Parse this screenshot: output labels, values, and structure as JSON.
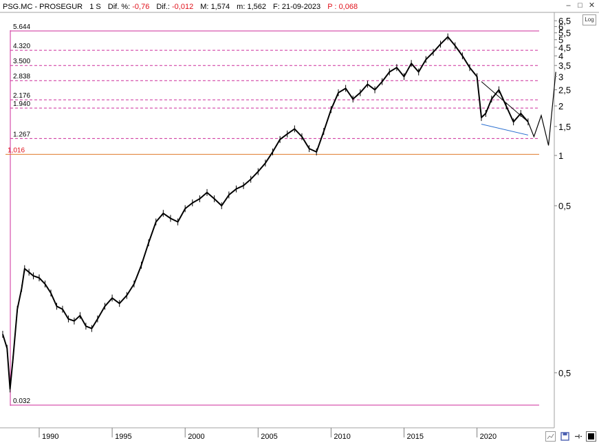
{
  "header": {
    "symbol": "PSG.MC - PROSEGUR",
    "timeframe": "1 S",
    "dif_pct_label": "Dif. %:",
    "dif_pct_value": "-0,76",
    "dif_label": "Dif.:",
    "dif_value": "-0,012",
    "max_label": "M:",
    "max_value": "1,574",
    "min_label": "m:",
    "min_value": "1,562",
    "date_label": "F:",
    "date_value": "21-09-2023",
    "p_label": "P :",
    "p_value": "0,068"
  },
  "toolbar": {
    "log_label": "Log"
  },
  "colors": {
    "background": "#ffffff",
    "price_line": "#000000",
    "level_lines": "#cc2a9a",
    "orange_level": "#e07a2a",
    "negative_value": "#e0101a",
    "support_line": "#2a6fd0"
  },
  "icons": [
    "minimize-icon",
    "maximize-icon",
    "close-icon",
    "zoom-icon",
    "save-icon",
    "pin-icon",
    "color-swatch-icon"
  ],
  "chart_data": {
    "type": "line",
    "title": "PSG.MC - PROSEGUR",
    "scale": "log",
    "grid": false,
    "y_ticks": [
      "6,5",
      "6",
      "5,5",
      "5",
      "4,5",
      "4",
      "3,5",
      "3",
      "2,5",
      "2",
      "1,5",
      "1",
      "0,5",
      "0,5"
    ],
    "x_ticks": [
      "1990",
      "1995",
      "2000",
      "2005",
      "2010",
      "2015",
      "2020"
    ],
    "level_lines": [
      {
        "label": "5.644",
        "value": 5.644
      },
      {
        "label": "4.320",
        "value": 4.32
      },
      {
        "label": "3.500",
        "value": 3.5
      },
      {
        "label": "2.838",
        "value": 2.838
      },
      {
        "label": "2.176",
        "value": 2.176
      },
      {
        "label": "1.940",
        "value": 1.94
      },
      {
        "label": "1.267",
        "value": 1.267
      },
      {
        "label": "1,016",
        "value": 1.016
      },
      {
        "label": "0.032",
        "value": 0.032
      }
    ],
    "series": [
      {
        "x": [
          1987.5,
          1987.8,
          1988.0,
          1988.2,
          1988.5,
          1988.8,
          1989.0,
          1989.3,
          1989.6,
          1990.0,
          1990.4,
          1990.8,
          1991.2,
          1991.6,
          1992.0,
          1992.4,
          1992.8,
          1993.2,
          1993.6,
          1994.0,
          1994.5,
          1995.0,
          1995.5,
          1996.0,
          1996.5,
          1997.0,
          1997.5,
          1998.0,
          1998.5,
          1999.0,
          1999.5,
          2000.0,
          2000.5,
          2001.0,
          2001.5,
          2002.0,
          2002.5,
          2003.0,
          2003.5,
          2004.0,
          2004.5,
          2005.0,
          2005.5,
          2006.0,
          2006.5,
          2007.0,
          2007.5,
          2008.0,
          2008.5,
          2009.0,
          2009.5,
          2010.0,
          2010.5,
          2011.0,
          2011.5,
          2012.0,
          2012.5,
          2013.0,
          2013.5,
          2014.0,
          2014.5,
          2015.0,
          2015.5,
          2016.0,
          2016.5,
          2017.0,
          2017.5,
          2018.0,
          2018.5,
          2019.0,
          2019.5,
          2020.0,
          2020.3,
          2020.6,
          2021.0,
          2021.5,
          2022.0,
          2022.5,
          2023.0,
          2023.5
        ],
        "values": [
          0.085,
          0.07,
          0.04,
          0.06,
          0.12,
          0.16,
          0.21,
          0.2,
          0.19,
          0.185,
          0.17,
          0.15,
          0.125,
          0.12,
          0.105,
          0.102,
          0.11,
          0.095,
          0.092,
          0.105,
          0.125,
          0.14,
          0.13,
          0.145,
          0.17,
          0.22,
          0.3,
          0.4,
          0.45,
          0.42,
          0.4,
          0.48,
          0.52,
          0.55,
          0.6,
          0.55,
          0.5,
          0.58,
          0.63,
          0.66,
          0.72,
          0.8,
          0.9,
          1.05,
          1.25,
          1.35,
          1.45,
          1.3,
          1.1,
          1.05,
          1.4,
          1.9,
          2.4,
          2.55,
          2.2,
          2.4,
          2.7,
          2.5,
          2.8,
          3.2,
          3.4,
          3.0,
          3.6,
          3.2,
          3.8,
          4.2,
          4.7,
          5.2,
          4.6,
          4.0,
          3.4,
          3.0,
          1.7,
          1.8,
          2.2,
          2.5,
          2.0,
          1.6,
          1.8,
          1.6
        ]
      }
    ],
    "trend_lines": [
      {
        "from": [
          2020.3,
          2.8
        ],
        "to": [
          2023.5,
          1.6
        ]
      },
      {
        "from": [
          2020.3,
          1.55
        ],
        "to": [
          2023.5,
          1.33
        ]
      }
    ],
    "projection": {
      "x": [
        2023.5,
        2023.9,
        2024.4,
        2024.9,
        2025.4
      ],
      "values": [
        1.6,
        1.3,
        1.75,
        1.15,
        3.2
      ]
    }
  }
}
